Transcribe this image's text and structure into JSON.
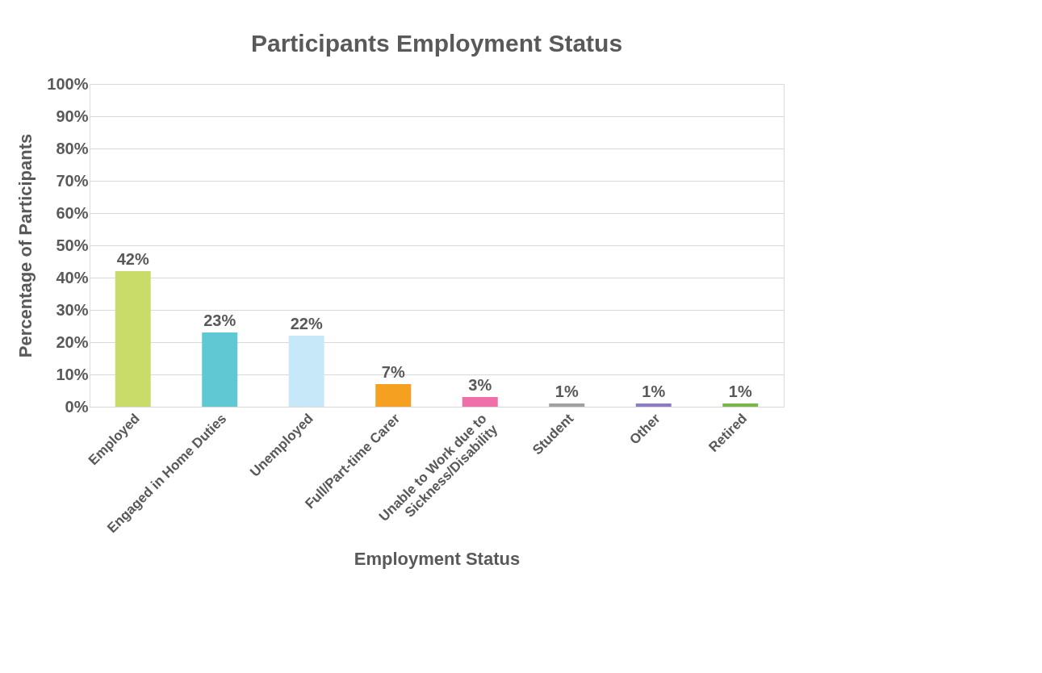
{
  "chart_data": {
    "type": "bar",
    "title": "Participants Employment Status",
    "xlabel": "Employment Status",
    "ylabel": "Percentage of Participants",
    "categories": [
      "Employed",
      "Engaged in Home Duties",
      "Unemployed",
      "Full/Part-time Carer",
      "Unable to Work due to\nSickness/Disability",
      "Student",
      "Other",
      "Retired"
    ],
    "values": [
      42,
      23,
      22,
      7,
      3,
      1,
      1,
      1
    ],
    "value_labels": [
      "42%",
      "23%",
      "22%",
      "7%",
      "3%",
      "1%",
      "1%",
      "1%"
    ],
    "colors": [
      "#c9dc6a",
      "#5fc8d2",
      "#c6e8f8",
      "#f5a020",
      "#ef6fa8",
      "#a0a0a0",
      "#8e7cc3",
      "#7ab648"
    ],
    "ylim": [
      0,
      100
    ],
    "yticks": [
      {
        "value": 0,
        "label": "0%"
      },
      {
        "value": 10,
        "label": "10%"
      },
      {
        "value": 20,
        "label": "20%"
      },
      {
        "value": 30,
        "label": "30%"
      },
      {
        "value": 40,
        "label": "40%"
      },
      {
        "value": 50,
        "label": "50%"
      },
      {
        "value": 60,
        "label": "60%"
      },
      {
        "value": 70,
        "label": "70%"
      },
      {
        "value": 80,
        "label": "80%"
      },
      {
        "value": 90,
        "label": "90%"
      },
      {
        "value": 100,
        "label": "100%"
      }
    ],
    "grid": "y"
  }
}
